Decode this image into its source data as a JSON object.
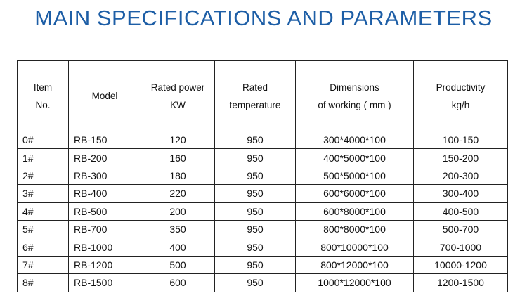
{
  "title": "MAIN SPECIFICATIONS AND PARAMETERS",
  "table": {
    "header": [
      [
        "Item",
        "No."
      ],
      [
        "Model"
      ],
      [
        "Rated power",
        "KW"
      ],
      [
        "Rated",
        "temperature"
      ],
      [
        "Dimensions",
        "of working ( mm )"
      ],
      [
        "Productivity",
        "kg/h"
      ]
    ],
    "rows": [
      [
        "0#",
        "RB-150",
        "120",
        "950",
        "300*4000*100",
        "100-150"
      ],
      [
        "1#",
        "RB-200",
        "160",
        "950",
        "400*5000*100",
        "150-200"
      ],
      [
        "2#",
        "RB-300",
        "180",
        "950",
        "500*5000*100",
        "200-300"
      ],
      [
        "3#",
        "RB-400",
        "220",
        "950",
        "600*6000*100",
        "300-400"
      ],
      [
        "4#",
        "RB-500",
        "200",
        "950",
        "600*8000*100",
        "400-500"
      ],
      [
        "5#",
        "RB-700",
        "350",
        "950",
        "800*8000*100",
        "500-700"
      ],
      [
        "6#",
        "RB-1000",
        "400",
        "950",
        "800*10000*100",
        "700-1000"
      ],
      [
        "7#",
        "RB-1200",
        "500",
        "950",
        "800*12000*100",
        "10000-1200"
      ],
      [
        "8#",
        "RB-1500",
        "600",
        "950",
        "1000*12000*100",
        "1200-1500"
      ]
    ]
  }
}
